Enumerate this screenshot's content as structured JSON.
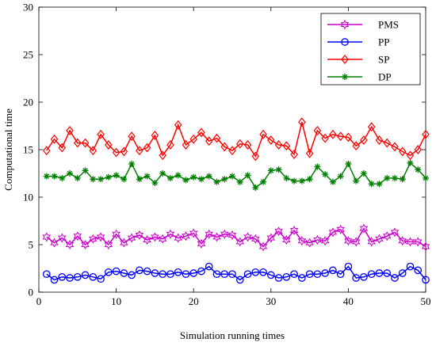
{
  "chart_data": {
    "type": "line",
    "title": "",
    "xlabel": "Simulation running times",
    "ylabel": "Computational time",
    "xlim": [
      0,
      50
    ],
    "ylim": [
      0,
      30
    ],
    "xticks": [
      0,
      10,
      20,
      30,
      40,
      50
    ],
    "yticks": [
      0,
      5,
      10,
      15,
      20,
      25,
      30
    ],
    "grid": false,
    "legend_position": "top-right",
    "x": [
      1,
      2,
      3,
      4,
      5,
      6,
      7,
      8,
      9,
      10,
      11,
      12,
      13,
      14,
      15,
      16,
      17,
      18,
      19,
      20,
      21,
      22,
      23,
      24,
      25,
      26,
      27,
      28,
      29,
      30,
      31,
      32,
      33,
      34,
      35,
      36,
      37,
      38,
      39,
      40,
      41,
      42,
      43,
      44,
      45,
      46,
      47,
      48,
      49,
      50
    ],
    "series": [
      {
        "name": "PMS",
        "color": "#cc00cc",
        "marker": "hexagram",
        "values": [
          5.8,
          5.2,
          5.7,
          5.0,
          5.9,
          5.0,
          5.6,
          5.8,
          5.0,
          6.1,
          5.2,
          5.7,
          6.0,
          5.5,
          5.8,
          5.6,
          6.1,
          5.7,
          5.9,
          6.2,
          5.1,
          6.1,
          5.8,
          6.1,
          6.0,
          5.3,
          5.8,
          5.6,
          4.8,
          5.7,
          6.4,
          5.5,
          6.5,
          5.4,
          5.2,
          5.5,
          5.4,
          6.3,
          6.6,
          5.4,
          5.3,
          6.7,
          5.3,
          5.6,
          5.9,
          6.3,
          5.4,
          5.3,
          5.3,
          4.8
        ]
      },
      {
        "name": "PP",
        "color": "#0000ff",
        "marker": "circle",
        "values": [
          1.9,
          1.3,
          1.6,
          1.5,
          1.6,
          1.8,
          1.6,
          1.4,
          2.1,
          2.2,
          2.0,
          1.8,
          2.3,
          2.2,
          2.0,
          1.9,
          1.9,
          2.1,
          1.9,
          2.0,
          2.2,
          2.7,
          1.9,
          1.9,
          1.9,
          1.3,
          1.9,
          2.1,
          2.1,
          1.8,
          1.5,
          1.6,
          1.9,
          1.5,
          1.9,
          1.9,
          2.0,
          2.3,
          1.9,
          2.7,
          1.5,
          1.6,
          1.9,
          2.0,
          2.0,
          1.5,
          2.0,
          2.7,
          2.3,
          1.3
        ]
      },
      {
        "name": "SP",
        "color": "#ff0000",
        "marker": "diamond",
        "values": [
          14.9,
          16.1,
          15.2,
          17.0,
          15.7,
          15.7,
          14.9,
          16.6,
          15.5,
          14.7,
          14.8,
          16.4,
          14.9,
          15.2,
          16.5,
          14.4,
          15.5,
          17.6,
          15.5,
          16.1,
          16.8,
          15.9,
          16.2,
          15.3,
          14.9,
          15.6,
          15.5,
          14.3,
          16.6,
          16.0,
          15.5,
          15.4,
          14.5,
          17.9,
          14.6,
          17.0,
          16.2,
          16.6,
          16.4,
          16.3,
          15.4,
          16.0,
          17.4,
          16.0,
          15.7,
          15.3,
          14.8,
          14.4,
          15.0,
          16.6
        ]
      },
      {
        "name": "DP",
        "color": "#008000",
        "marker": "asterisk",
        "values": [
          12.2,
          12.2,
          12.0,
          12.5,
          12.0,
          12.8,
          11.9,
          11.9,
          12.1,
          12.3,
          11.9,
          13.5,
          11.9,
          12.2,
          11.5,
          12.5,
          12.0,
          12.3,
          11.8,
          12.1,
          11.9,
          12.2,
          11.6,
          11.9,
          12.2,
          11.6,
          12.3,
          11.0,
          11.6,
          12.8,
          12.9,
          12.0,
          11.7,
          11.7,
          11.9,
          13.2,
          12.4,
          11.6,
          12.2,
          13.5,
          11.7,
          12.5,
          11.4,
          11.4,
          12.0,
          12.0,
          11.9,
          13.6,
          12.9,
          12.0
        ]
      }
    ]
  }
}
